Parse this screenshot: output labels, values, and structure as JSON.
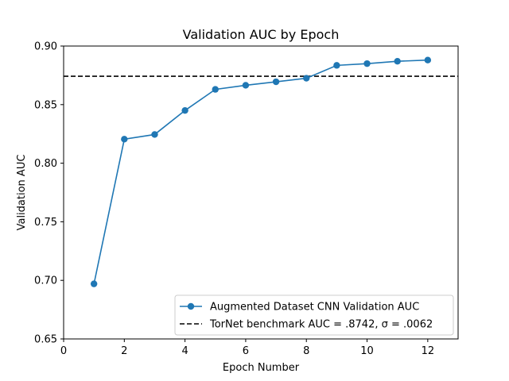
{
  "chart_data": {
    "type": "line",
    "title": "Validation AUC by Epoch",
    "xlabel": "Epoch Number",
    "ylabel": "Validation AUC",
    "xlim": [
      0,
      13
    ],
    "ylim": [
      0.65,
      0.9
    ],
    "xticks": [
      0,
      2,
      4,
      6,
      8,
      10,
      12
    ],
    "yticks": [
      0.65,
      0.7,
      0.75,
      0.8,
      0.85,
      0.9
    ],
    "xtick_labels": [
      "0",
      "2",
      "4",
      "6",
      "8",
      "10",
      "12"
    ],
    "ytick_labels": [
      "0.65",
      "0.70",
      "0.75",
      "0.80",
      "0.85",
      "0.90"
    ],
    "grid": false,
    "legend_position": "lower-right",
    "series": [
      {
        "name": "Augmented Dataset CNN Validation AUC",
        "color": "#1f77b4",
        "marker": "circle",
        "x": [
          1,
          2,
          3,
          4,
          5,
          6,
          7,
          8,
          9,
          10,
          11,
          12
        ],
        "y": [
          0.697,
          0.8205,
          0.8245,
          0.845,
          0.863,
          0.8665,
          0.8695,
          0.8725,
          0.8835,
          0.885,
          0.887,
          0.888
        ]
      }
    ],
    "reference_lines": [
      {
        "name": "TorNet benchmark AUC = .8742, σ = .0062",
        "orientation": "horizontal",
        "y": 0.8742,
        "color": "#000000",
        "style": "dashed"
      }
    ]
  }
}
